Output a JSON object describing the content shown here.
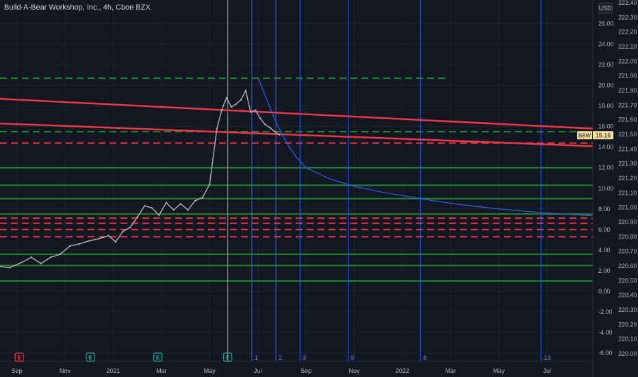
{
  "header": {
    "title": "Build-A-Bear Workshop, Inc., 4h, Cboe BZX",
    "currency": "USD"
  },
  "price_tag": {
    "symbol": "BBW",
    "value": "15.16"
  },
  "chart_data": {
    "type": "line",
    "title": "Build-A-Bear Workshop, Inc., 4h, Cboe BZX",
    "left_axis": {
      "ticks": [
        26.0,
        24.0,
        22.0,
        20.0,
        18.0,
        16.0,
        14.0,
        12.0,
        10.0,
        8.0,
        6.0,
        4.0,
        2.0,
        0.0,
        -2.0,
        -4.0,
        -6.0
      ],
      "labels": [
        "26.00",
        "24.00",
        "22.00",
        "20.00",
        "18.00",
        "16.00",
        "14.00",
        "12.00",
        "10.00",
        "8.00",
        "6.00",
        "4.00",
        "2.00",
        "0.00",
        "-2.00",
        "-4.00",
        "-6.00"
      ],
      "ylim": [
        -6.8,
        28.3
      ]
    },
    "right_axis": {
      "labels": [
        "222.40",
        "222.30",
        "222.20",
        "222.10",
        "222.00",
        "221.90",
        "221.80",
        "221.70",
        "221.60",
        "221.50",
        "221.40",
        "221.30",
        "221.20",
        "221.10",
        "221.00",
        "220.90",
        "220.80",
        "220.70",
        "220.60",
        "220.50",
        "220.40",
        "220.30",
        "220.20",
        "220.10",
        "220.00"
      ]
    },
    "x_ticks": [
      "Sep",
      "Nov",
      "2021",
      "Mar",
      "May",
      "Jul",
      "Sep",
      "Nov",
      "2022",
      "Mar",
      "May",
      "Jul"
    ],
    "x_tick_months": [
      0,
      2,
      4,
      6,
      8,
      10,
      12,
      14,
      16,
      18,
      20,
      22
    ],
    "x_range_months": [
      -0.7,
      23.9
    ],
    "price_series": {
      "name": "BBW",
      "t": [
        -0.7,
        -0.3,
        0.2,
        0.6,
        1.0,
        1.4,
        1.8,
        2.2,
        2.6,
        3.0,
        3.4,
        3.8,
        4.1,
        4.4,
        4.7,
        5.0,
        5.3,
        5.6,
        5.9,
        6.2,
        6.5,
        6.8,
        7.1,
        7.4,
        7.7,
        8.0,
        8.3,
        8.5,
        8.7,
        8.9,
        9.1,
        9.3,
        9.5,
        9.7,
        9.9,
        10.1,
        10.3,
        10.5,
        10.7,
        10.9
      ],
      "y": [
        2.4,
        2.3,
        2.8,
        3.3,
        2.7,
        3.3,
        3.6,
        4.4,
        4.6,
        4.9,
        5.1,
        5.4,
        4.8,
        5.8,
        6.2,
        7.2,
        8.3,
        8.1,
        7.4,
        8.6,
        7.9,
        8.5,
        7.9,
        8.8,
        9.1,
        10.4,
        15.8,
        17.6,
        18.8,
        17.9,
        18.2,
        18.6,
        19.5,
        17.4,
        17.6,
        16.8,
        16.2,
        15.9,
        15.5,
        15.2
      ]
    },
    "projection_curve": {
      "t": [
        10.0,
        10.4,
        10.8,
        11.2,
        11.6,
        12.0,
        13.0,
        14.0,
        15.0,
        16.0,
        17.0,
        18.0,
        19.0,
        20.0,
        21.0,
        22.0,
        23.0,
        23.9
      ],
      "y": [
        20.8,
        18.4,
        16.2,
        14.4,
        13.0,
        12.0,
        10.9,
        10.2,
        9.7,
        9.3,
        8.9,
        8.55,
        8.25,
        8.0,
        7.8,
        7.6,
        7.45,
        7.35
      ]
    },
    "trendlines": [
      {
        "t": [
          -0.7,
          23.9
        ],
        "y": [
          18.7,
          15.8
        ],
        "color": "#f23645"
      },
      {
        "t": [
          -0.7,
          23.9
        ],
        "y": [
          16.3,
          14.1
        ],
        "color": "#f23645"
      }
    ],
    "horizontal_levels": [
      {
        "y": 20.7,
        "t": [
          -0.7,
          17.8
        ],
        "style": "dashed",
        "color": "#1b8c2c"
      },
      {
        "y": 15.5,
        "t": [
          -0.7,
          23.9
        ],
        "style": "dashed",
        "color": "#1b8c2c"
      },
      {
        "y": 14.4,
        "t": [
          -0.7,
          23.9
        ],
        "style": "dashed",
        "color": "#f23645"
      },
      {
        "y": 12.0,
        "t": [
          -0.7,
          23.9
        ],
        "style": "solid",
        "color": "#1b8c2c"
      },
      {
        "y": 10.3,
        "t": [
          -0.7,
          23.9
        ],
        "style": "solid",
        "color": "#1b8c2c"
      },
      {
        "y": 9.0,
        "t": [
          -0.7,
          23.9
        ],
        "style": "solid",
        "color": "#1b8c2c"
      },
      {
        "y": 7.5,
        "t": [
          -0.7,
          23.9
        ],
        "style": "solid",
        "color": "#1b8c2c"
      },
      {
        "y": 7.1,
        "t": [
          -0.7,
          23.9
        ],
        "style": "dashed",
        "color": "#f23645"
      },
      {
        "y": 6.6,
        "t": [
          -0.7,
          23.9
        ],
        "style": "dashed",
        "color": "#f23645"
      },
      {
        "y": 6.0,
        "t": [
          -0.7,
          23.9
        ],
        "style": "dashed",
        "color": "#f23645"
      },
      {
        "y": 5.3,
        "t": [
          -0.7,
          23.9
        ],
        "style": "dashed",
        "color": "#f23645"
      },
      {
        "y": 3.6,
        "t": [
          -0.7,
          23.9
        ],
        "style": "solid",
        "color": "#1b8c2c"
      },
      {
        "y": 2.5,
        "t": [
          -0.7,
          23.9
        ],
        "style": "solid",
        "color": "#1b8c2c"
      },
      {
        "y": 1.0,
        "t": [
          -0.7,
          23.9
        ],
        "style": "solid",
        "color": "#1b8c2c"
      }
    ],
    "vertical_lines": [
      {
        "t": 8.75,
        "color": "#9598a1",
        "label": ""
      },
      {
        "t": 9.75,
        "color": "#2962ff",
        "label": "1"
      },
      {
        "t": 10.75,
        "color": "#2962ff",
        "label": "2"
      },
      {
        "t": 11.75,
        "color": "#2962ff",
        "label": "3"
      },
      {
        "t": 13.75,
        "color": "#2962ff",
        "label": "5"
      },
      {
        "t": 16.75,
        "color": "#2962ff",
        "label": "8"
      },
      {
        "t": 21.75,
        "color": "#2962ff",
        "label": "13"
      }
    ],
    "events": [
      {
        "t": 0.1,
        "label": "E",
        "color": "#f23645"
      },
      {
        "t": 3.05,
        "label": "E",
        "color": "#26a69a"
      },
      {
        "t": 5.85,
        "label": "E",
        "color": "#26a69a"
      },
      {
        "t": 8.75,
        "label": "E",
        "color": "#26a69a"
      }
    ],
    "grid": true,
    "colors": {
      "background": "#131722",
      "grid": "#1e222d",
      "projection": "#2962ff",
      "price": "#b2b5be"
    }
  }
}
